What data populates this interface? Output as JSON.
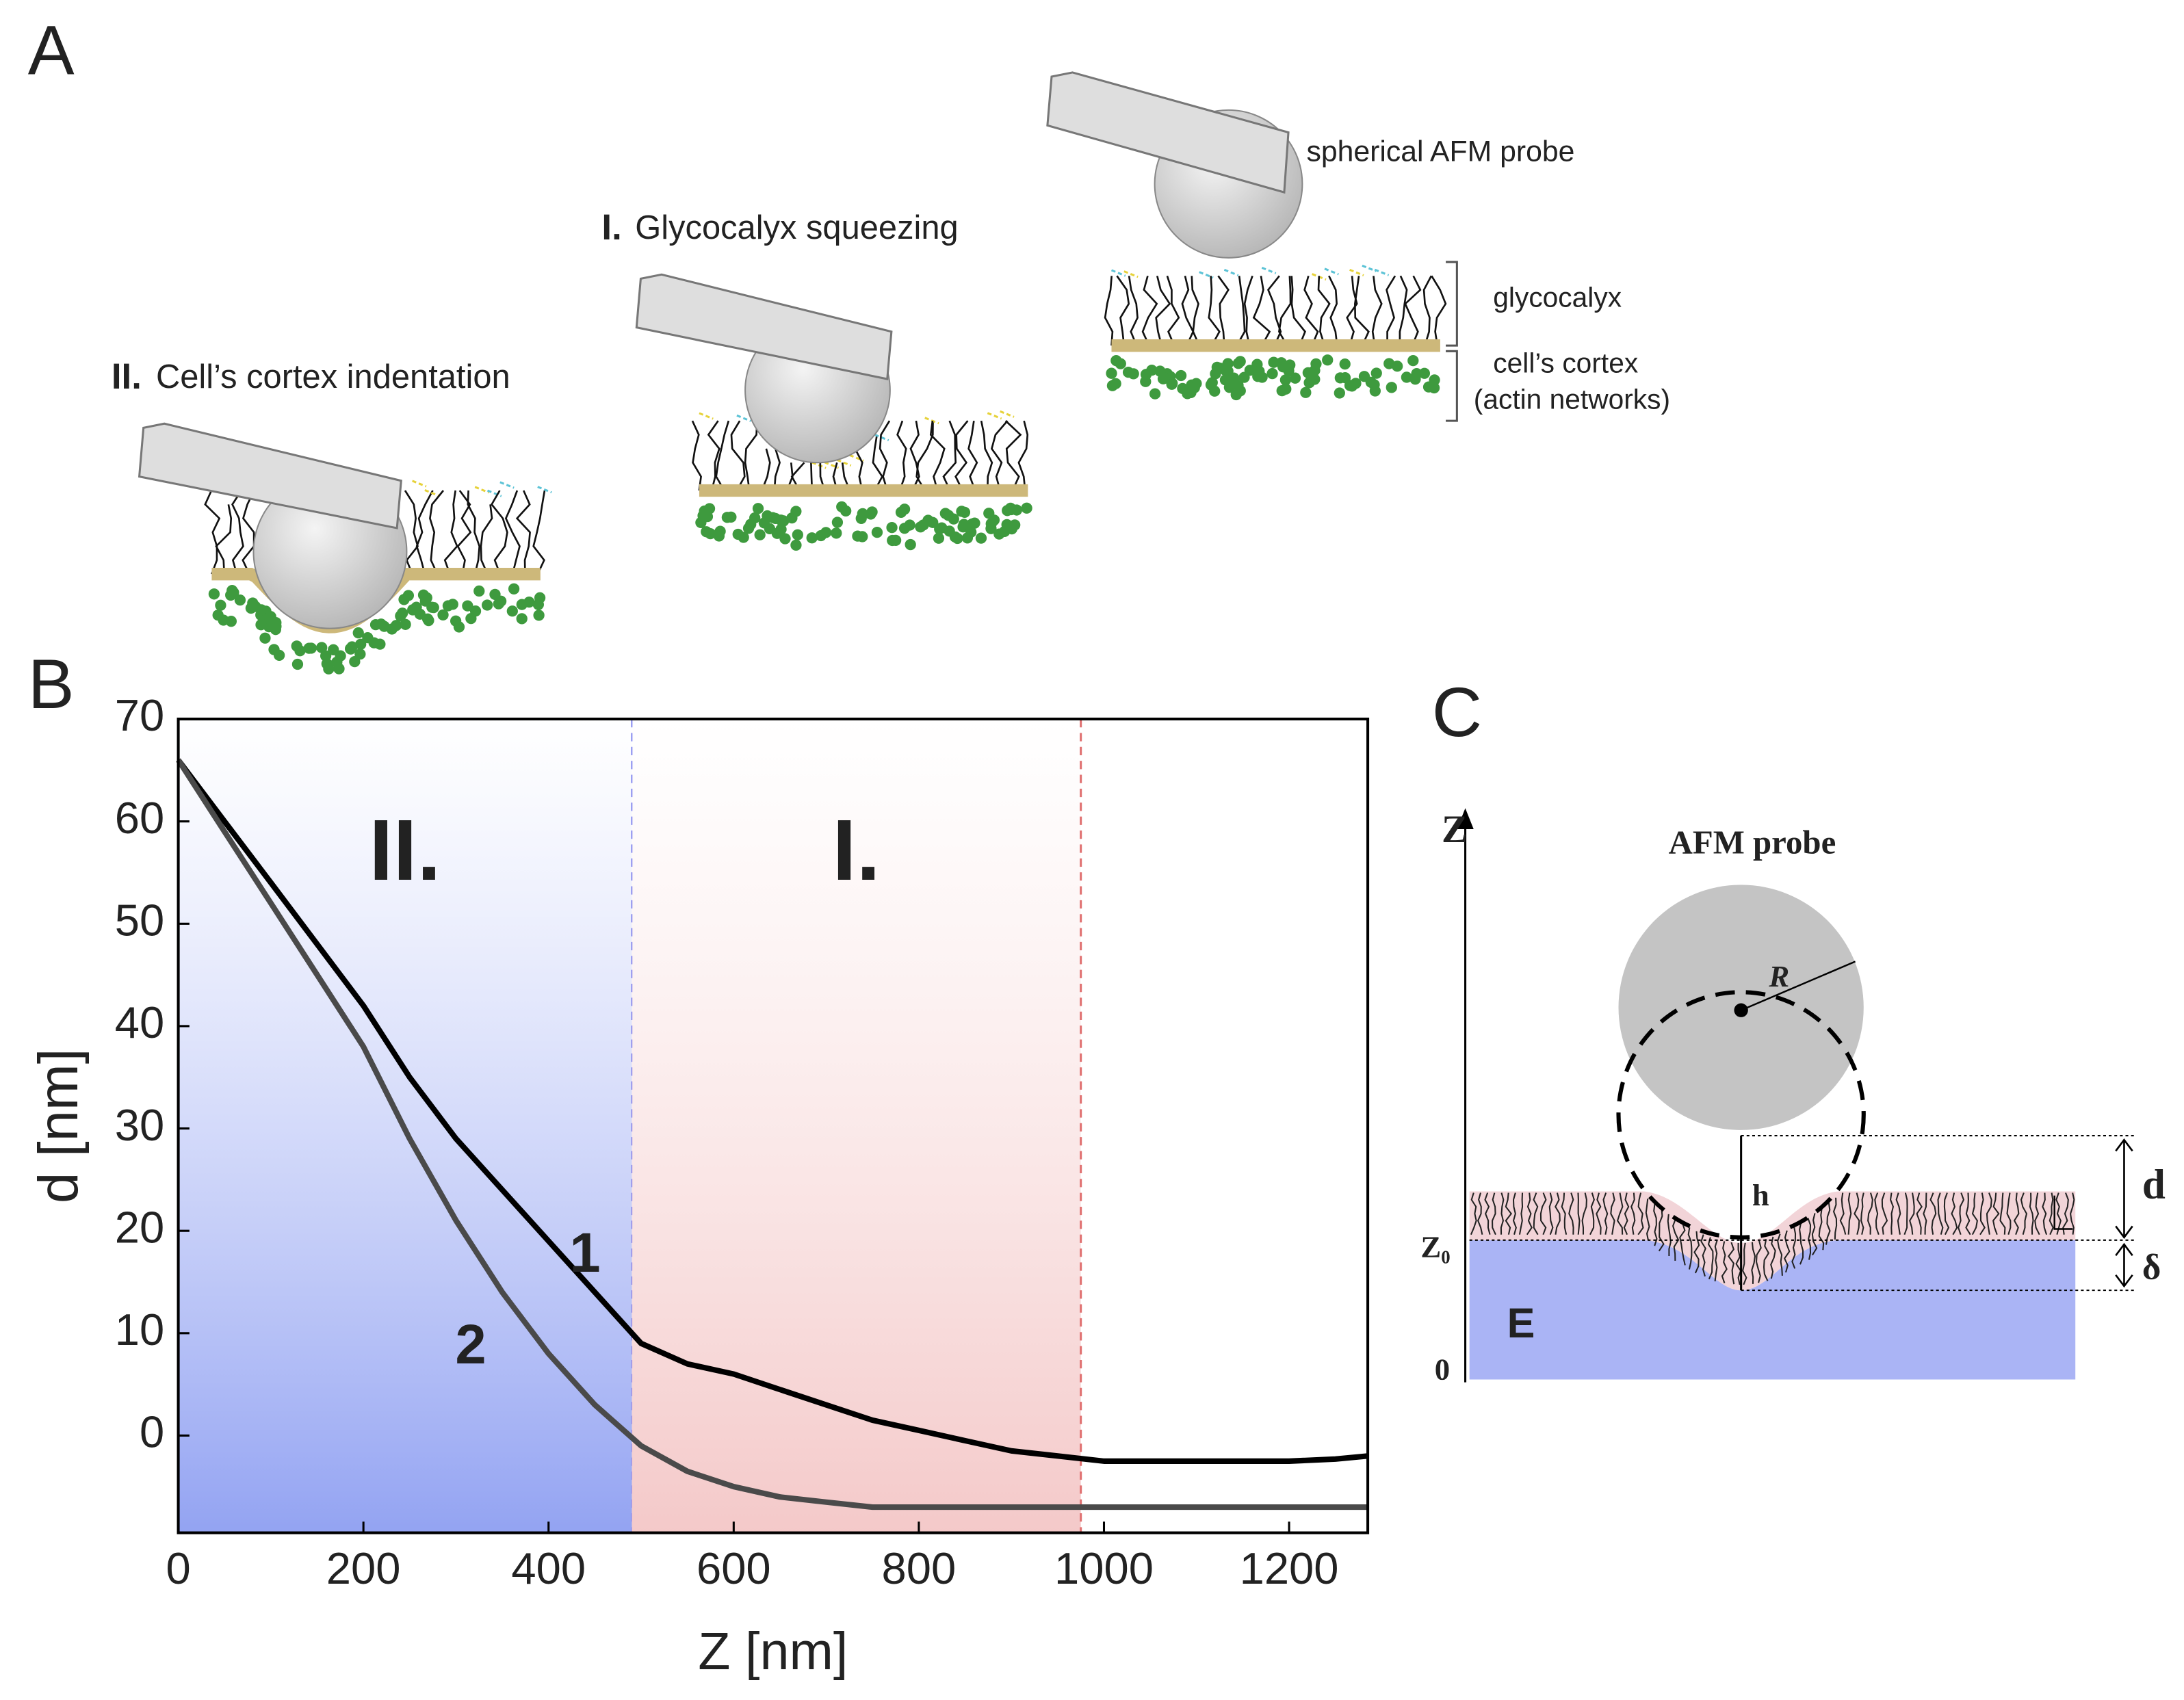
{
  "panel_a": {
    "label": "A",
    "probe_label": "spherical AFM probe",
    "stage_1": {
      "numeral": "I.",
      "text": "Glycocalyx squeezing"
    },
    "stage_2": {
      "numeral": "II.",
      "text": "Cell’s cortex indentation"
    },
    "glycocalyx": "glycocalyx",
    "cortex": [
      "cell’s cortex",
      "(actin networks)"
    ]
  },
  "chart_data": {
    "type": "line",
    "panel_label": "B",
    "xlabel": "Z [nm]",
    "ylabel": "d [nm]",
    "x": [
      0,
      50,
      100,
      150,
      200,
      250,
      300,
      350,
      400,
      450,
      500,
      550,
      600,
      650,
      700,
      750,
      800,
      850,
      900,
      950,
      1000,
      1050,
      1100,
      1150,
      1200,
      1250,
      1285
    ],
    "series": [
      {
        "name": "1",
        "color": "#000000",
        "values": [
          66,
          60,
          54,
          48,
          42,
          35,
          29,
          24,
          19,
          14,
          9,
          7,
          6,
          4.5,
          3,
          1.5,
          0.5,
          -0.5,
          -1.5,
          -2,
          -2.5,
          -2.5,
          -2.5,
          -2.5,
          -2.5,
          -2.3,
          -2
        ]
      },
      {
        "name": "2",
        "color": "#4a4a4a",
        "values": [
          66,
          59,
          52,
          45,
          38,
          29,
          21,
          14,
          8,
          3,
          -1,
          -3.5,
          -5,
          -6,
          -6.5,
          -7,
          -7,
          -7,
          -7,
          -7,
          -7,
          -7,
          -7,
          -7,
          -7,
          -7,
          -7
        ]
      }
    ],
    "regions": [
      {
        "label": "II.",
        "x0": 0,
        "x1": 490,
        "color": "#93a3f2",
        "line_color": "#8a8ff0"
      },
      {
        "label": "I.",
        "x0": 490,
        "x1": 975,
        "color": "#f4c9c9",
        "line_color": "#e07070"
      }
    ],
    "xlim": [
      0,
      1285
    ],
    "ylim": [
      -9.5,
      70
    ],
    "xticks": [
      0,
      200,
      400,
      600,
      800,
      1000,
      1200
    ],
    "yticks": [
      0,
      10,
      20,
      30,
      40,
      50,
      60,
      70
    ]
  },
  "panel_c": {
    "label": "C",
    "z_axis": "Z",
    "probe": "AFM probe",
    "radius": "R",
    "h": "h",
    "d": "d",
    "z0": "Z₀",
    "zero": "0",
    "modulus": "E",
    "delta": "δ"
  }
}
